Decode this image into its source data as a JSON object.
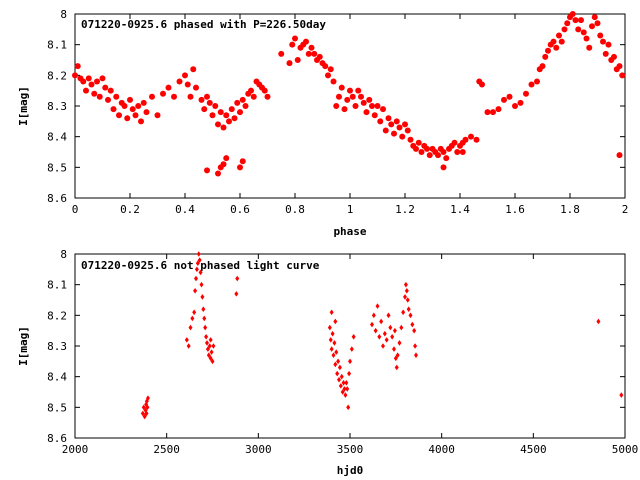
{
  "chart_data": [
    {
      "type": "scatter",
      "title": "071220-0925.6 phased with P=226.50day",
      "xlabel": "phase",
      "ylabel": "I[mag]",
      "xlim": [
        0,
        2
      ],
      "ylim": [
        8.6,
        8
      ],
      "y_inverted": true,
      "xticks": [
        "0",
        "0.2",
        "0.4",
        "0.6",
        "0.8",
        "1",
        "1.2",
        "1.4",
        "1.6",
        "1.8",
        "2"
      ],
      "yticks": [
        "8",
        "8.1",
        "8.2",
        "8.3",
        "8.4",
        "8.5",
        "8.6"
      ],
      "grid": false,
      "marker": "filled-circle",
      "color": "#ff0000",
      "points": [
        [
          0.0,
          8.2
        ],
        [
          0.01,
          8.17
        ],
        [
          0.02,
          8.21
        ],
        [
          0.03,
          8.22
        ],
        [
          0.04,
          8.25
        ],
        [
          0.05,
          8.21
        ],
        [
          0.06,
          8.23
        ],
        [
          0.07,
          8.26
        ],
        [
          0.08,
          8.22
        ],
        [
          0.09,
          8.27
        ],
        [
          0.1,
          8.21
        ],
        [
          0.11,
          8.24
        ],
        [
          0.12,
          8.28
        ],
        [
          0.13,
          8.25
        ],
        [
          0.14,
          8.31
        ],
        [
          0.15,
          8.27
        ],
        [
          0.16,
          8.33
        ],
        [
          0.17,
          8.29
        ],
        [
          0.18,
          8.3
        ],
        [
          0.19,
          8.34
        ],
        [
          0.2,
          8.28
        ],
        [
          0.21,
          8.31
        ],
        [
          0.22,
          8.33
        ],
        [
          0.23,
          8.3
        ],
        [
          0.24,
          8.35
        ],
        [
          0.25,
          8.29
        ],
        [
          0.26,
          8.32
        ],
        [
          0.28,
          8.27
        ],
        [
          0.3,
          8.33
        ],
        [
          0.32,
          8.26
        ],
        [
          0.34,
          8.24
        ],
        [
          0.36,
          8.27
        ],
        [
          0.38,
          8.22
        ],
        [
          0.4,
          8.2
        ],
        [
          0.41,
          8.23
        ],
        [
          0.42,
          8.27
        ],
        [
          0.43,
          8.18
        ],
        [
          0.44,
          8.24
        ],
        [
          0.46,
          8.28
        ],
        [
          0.47,
          8.31
        ],
        [
          0.48,
          8.27
        ],
        [
          0.49,
          8.29
        ],
        [
          0.5,
          8.33
        ],
        [
          0.51,
          8.3
        ],
        [
          0.52,
          8.36
        ],
        [
          0.53,
          8.32
        ],
        [
          0.54,
          8.37
        ],
        [
          0.55,
          8.33
        ],
        [
          0.56,
          8.35
        ],
        [
          0.57,
          8.31
        ],
        [
          0.58,
          8.34
        ],
        [
          0.59,
          8.29
        ],
        [
          0.6,
          8.32
        ],
        [
          0.61,
          8.28
        ],
        [
          0.62,
          8.3
        ],
        [
          0.63,
          8.26
        ],
        [
          0.64,
          8.25
        ],
        [
          0.65,
          8.27
        ],
        [
          0.66,
          8.22
        ],
        [
          0.67,
          8.23
        ],
        [
          0.68,
          8.24
        ],
        [
          0.69,
          8.25
        ],
        [
          0.7,
          8.27
        ],
        [
          0.48,
          8.51
        ],
        [
          0.52,
          8.52
        ],
        [
          0.53,
          8.5
        ],
        [
          0.54,
          8.49
        ],
        [
          0.55,
          8.47
        ],
        [
          0.6,
          8.5
        ],
        [
          0.61,
          8.48
        ],
        [
          0.75,
          8.13
        ],
        [
          0.78,
          8.16
        ],
        [
          0.79,
          8.1
        ],
        [
          0.8,
          8.08
        ],
        [
          0.81,
          8.15
        ],
        [
          0.82,
          8.11
        ],
        [
          0.83,
          8.1
        ],
        [
          0.84,
          8.09
        ],
        [
          0.85,
          8.13
        ],
        [
          0.86,
          8.11
        ],
        [
          0.87,
          8.13
        ],
        [
          0.88,
          8.15
        ],
        [
          0.89,
          8.14
        ],
        [
          0.9,
          8.16
        ],
        [
          0.91,
          8.17
        ],
        [
          0.92,
          8.2
        ],
        [
          0.93,
          8.18
        ],
        [
          0.94,
          8.22
        ],
        [
          0.95,
          8.3
        ],
        [
          0.96,
          8.27
        ],
        [
          0.97,
          8.24
        ],
        [
          0.98,
          8.31
        ],
        [
          0.99,
          8.28
        ],
        [
          1.0,
          8.25
        ],
        [
          1.01,
          8.27
        ],
        [
          1.02,
          8.3
        ],
        [
          1.03,
          8.25
        ],
        [
          1.04,
          8.27
        ],
        [
          1.05,
          8.29
        ],
        [
          1.06,
          8.32
        ],
        [
          1.07,
          8.28
        ],
        [
          1.08,
          8.3
        ],
        [
          1.09,
          8.33
        ],
        [
          1.1,
          8.3
        ],
        [
          1.11,
          8.35
        ],
        [
          1.12,
          8.31
        ],
        [
          1.13,
          8.38
        ],
        [
          1.14,
          8.34
        ],
        [
          1.15,
          8.36
        ],
        [
          1.16,
          8.39
        ],
        [
          1.17,
          8.35
        ],
        [
          1.18,
          8.37
        ],
        [
          1.19,
          8.4
        ],
        [
          1.2,
          8.36
        ],
        [
          1.21,
          8.38
        ],
        [
          1.22,
          8.41
        ],
        [
          1.23,
          8.43
        ],
        [
          1.24,
          8.44
        ],
        [
          1.25,
          8.42
        ],
        [
          1.26,
          8.45
        ],
        [
          1.27,
          8.43
        ],
        [
          1.28,
          8.44
        ],
        [
          1.29,
          8.46
        ],
        [
          1.3,
          8.44
        ],
        [
          1.31,
          8.45
        ],
        [
          1.32,
          8.46
        ],
        [
          1.33,
          8.44
        ],
        [
          1.34,
          8.45
        ],
        [
          1.35,
          8.47
        ],
        [
          1.36,
          8.44
        ],
        [
          1.37,
          8.43
        ],
        [
          1.38,
          8.42
        ],
        [
          1.39,
          8.45
        ],
        [
          1.4,
          8.43
        ],
        [
          1.41,
          8.42
        ],
        [
          1.42,
          8.41
        ],
        [
          1.44,
          8.4
        ],
        [
          1.46,
          8.41
        ],
        [
          1.47,
          8.22
        ],
        [
          1.48,
          8.23
        ],
        [
          1.5,
          8.32
        ],
        [
          1.52,
          8.32
        ],
        [
          1.54,
          8.31
        ],
        [
          1.56,
          8.28
        ],
        [
          1.58,
          8.27
        ],
        [
          1.6,
          8.3
        ],
        [
          1.62,
          8.29
        ],
        [
          1.64,
          8.26
        ],
        [
          1.66,
          8.23
        ],
        [
          1.68,
          8.22
        ],
        [
          1.69,
          8.18
        ],
        [
          1.7,
          8.17
        ],
        [
          1.71,
          8.14
        ],
        [
          1.72,
          8.12
        ],
        [
          1.73,
          8.1
        ],
        [
          1.74,
          8.09
        ],
        [
          1.75,
          8.11
        ],
        [
          1.76,
          8.07
        ],
        [
          1.77,
          8.09
        ],
        [
          1.78,
          8.05
        ],
        [
          1.79,
          8.03
        ],
        [
          1.8,
          8.01
        ],
        [
          1.81,
          8.0
        ],
        [
          1.82,
          8.02
        ],
        [
          1.83,
          8.05
        ],
        [
          1.84,
          8.02
        ],
        [
          1.85,
          8.06
        ],
        [
          1.86,
          8.08
        ],
        [
          1.87,
          8.11
        ],
        [
          1.88,
          8.04
        ],
        [
          1.89,
          8.01
        ],
        [
          1.9,
          8.03
        ],
        [
          1.91,
          8.07
        ],
        [
          1.92,
          8.09
        ],
        [
          1.93,
          8.13
        ],
        [
          1.94,
          8.1
        ],
        [
          1.95,
          8.15
        ],
        [
          1.96,
          8.14
        ],
        [
          1.97,
          8.18
        ],
        [
          1.98,
          8.17
        ],
        [
          1.99,
          8.2
        ],
        [
          1.98,
          8.46
        ],
        [
          1.34,
          8.5
        ],
        [
          1.41,
          8.45
        ]
      ]
    },
    {
      "type": "scatter",
      "title": "071220-0925.6 not phased light curve",
      "xlabel": "hjd0",
      "ylabel": "I[mag]",
      "xlim": [
        2000,
        5000
      ],
      "ylim": [
        8.6,
        8
      ],
      "y_inverted": true,
      "xticks": [
        "2000",
        "2500",
        "3000",
        "3500",
        "4000",
        "4500",
        "5000"
      ],
      "yticks": [
        "8",
        "8.1",
        "8.2",
        "8.3",
        "8.4",
        "8.5",
        "8.6"
      ],
      "grid": false,
      "marker": "small-diamond",
      "color": "#ff0000",
      "points": [
        [
          2370,
          8.52
        ],
        [
          2375,
          8.5
        ],
        [
          2380,
          8.53
        ],
        [
          2385,
          8.51
        ],
        [
          2388,
          8.49
        ],
        [
          2390,
          8.52
        ],
        [
          2392,
          8.48
        ],
        [
          2395,
          8.5
        ],
        [
          2398,
          8.47
        ],
        [
          2610,
          8.28
        ],
        [
          2620,
          8.3
        ],
        [
          2630,
          8.24
        ],
        [
          2640,
          8.21
        ],
        [
          2650,
          8.19
        ],
        [
          2655,
          8.12
        ],
        [
          2660,
          8.08
        ],
        [
          2665,
          8.05
        ],
        [
          2670,
          8.03
        ],
        [
          2675,
          8.0
        ],
        [
          2680,
          8.02
        ],
        [
          2685,
          8.06
        ],
        [
          2690,
          8.1
        ],
        [
          2695,
          8.14
        ],
        [
          2700,
          8.18
        ],
        [
          2705,
          8.21
        ],
        [
          2710,
          8.24
        ],
        [
          2715,
          8.27
        ],
        [
          2720,
          8.29
        ],
        [
          2725,
          8.31
        ],
        [
          2730,
          8.33
        ],
        [
          2735,
          8.3
        ],
        [
          2740,
          8.34
        ],
        [
          2745,
          8.32
        ],
        [
          2750,
          8.35
        ],
        [
          2740,
          8.28
        ],
        [
          2755,
          8.3
        ],
        [
          2880,
          8.13
        ],
        [
          2885,
          8.08
        ],
        [
          3390,
          8.24
        ],
        [
          3395,
          8.28
        ],
        [
          3400,
          8.31
        ],
        [
          3405,
          8.26
        ],
        [
          3410,
          8.33
        ],
        [
          3415,
          8.29
        ],
        [
          3420,
          8.36
        ],
        [
          3425,
          8.32
        ],
        [
          3430,
          8.39
        ],
        [
          3435,
          8.35
        ],
        [
          3440,
          8.41
        ],
        [
          3445,
          8.37
        ],
        [
          3450,
          8.43
        ],
        [
          3455,
          8.4
        ],
        [
          3460,
          8.45
        ],
        [
          3465,
          8.42
        ],
        [
          3470,
          8.44
        ],
        [
          3475,
          8.46
        ],
        [
          3480,
          8.42
        ],
        [
          3485,
          8.44
        ],
        [
          3490,
          8.5
        ],
        [
          3495,
          8.39
        ],
        [
          3500,
          8.35
        ],
        [
          3510,
          8.31
        ],
        [
          3520,
          8.27
        ],
        [
          3400,
          8.19
        ],
        [
          3420,
          8.22
        ],
        [
          3620,
          8.23
        ],
        [
          3630,
          8.2
        ],
        [
          3640,
          8.25
        ],
        [
          3650,
          8.17
        ],
        [
          3660,
          8.27
        ],
        [
          3670,
          8.22
        ],
        [
          3680,
          8.3
        ],
        [
          3690,
          8.26
        ],
        [
          3700,
          8.28
        ],
        [
          3710,
          8.2
        ],
        [
          3720,
          8.24
        ],
        [
          3730,
          8.27
        ],
        [
          3740,
          8.31
        ],
        [
          3750,
          8.34
        ],
        [
          3755,
          8.37
        ],
        [
          3760,
          8.33
        ],
        [
          3770,
          8.29
        ],
        [
          3780,
          8.24
        ],
        [
          3790,
          8.19
        ],
        [
          3800,
          8.14
        ],
        [
          3805,
          8.1
        ],
        [
          3810,
          8.12
        ],
        [
          3815,
          8.15
        ],
        [
          3820,
          8.18
        ],
        [
          3830,
          8.2
        ],
        [
          3840,
          8.23
        ],
        [
          3850,
          8.25
        ],
        [
          3855,
          8.3
        ],
        [
          3860,
          8.33
        ],
        [
          3745,
          8.25
        ],
        [
          4855,
          8.22
        ],
        [
          4980,
          8.46
        ]
      ]
    }
  ]
}
